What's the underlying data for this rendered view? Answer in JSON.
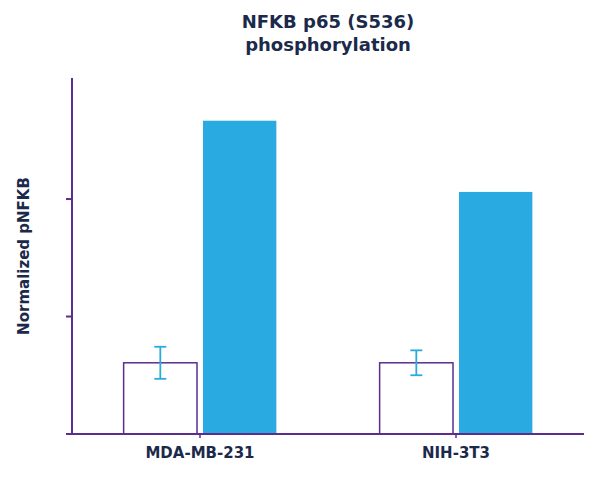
{
  "chart_data": {
    "type": "bar",
    "title": "NFKB p65 (S536)\nphosphorylation",
    "y_label": "Normalized pNFKB",
    "categories": [
      "MDA-MB-231",
      "NIH-3T3"
    ],
    "series": [
      {
        "color": "white",
        "values": [
          0.2,
          0.2
        ],
        "errors": [
          0.045,
          0.035
        ]
      },
      {
        "color": "#29ABE2",
        "values": [
          0.88,
          0.68
        ]
      }
    ],
    "ylim": [
      0,
      1.0
    ],
    "yticks": [
      0.0,
      0.33,
      0.66
    ],
    "grid": false,
    "tick_labels": "x"
  }
}
